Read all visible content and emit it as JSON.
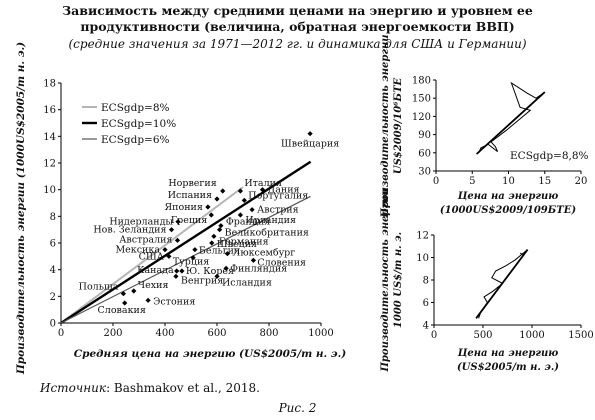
{
  "header": {
    "title_line1": "Зависимость между средними ценами на энергию и уровнем ее",
    "title_line2": "продуктивности (величина, обратная энергоемкости ВВП)",
    "subtitle": "(средние значения за 1971—2012 гг. и динамика для США и Германии)"
  },
  "chart_data": [
    {
      "type": "scatter",
      "xlabel": "Средняя цена на энергию (US$2005/т н. э.)",
      "ylabel": "Производительность энергии (1000US$2005/т н. э.)",
      "xlim": [
        0,
        1000
      ],
      "ylim": [
        0,
        18
      ],
      "x_ticks": [
        "0",
        "200",
        "400",
        "600",
        "800",
        "1000"
      ],
      "y_ticks": [
        "0",
        "2",
        "4",
        "6",
        "8",
        "10",
        "12",
        "14",
        "16",
        "18"
      ],
      "legend": {
        "placement": "top-left",
        "entries": [
          "ECSgdp=8%",
          "ECSgdp=10%",
          "ECSgdp=6%"
        ]
      },
      "lines": [
        {
          "name": "ECSgdp=8%",
          "color": "#b5b5b5",
          "width": 2,
          "points": [
            [
              0,
              0
            ],
            [
              700,
              10.2
            ]
          ]
        },
        {
          "name": "ECSgdp=10%",
          "color": "#000000",
          "width": 2.4,
          "points": [
            [
              0,
              0
            ],
            [
              960,
              12.1
            ]
          ]
        },
        {
          "name": "ECSgdp=6%",
          "color": "#555555",
          "width": 1.2,
          "points": [
            [
              0,
              0
            ],
            [
              960,
              9.5
            ]
          ]
        }
      ],
      "points": [
        {
          "label": "Швейцария",
          "x": 958,
          "y": 14.2
        },
        {
          "label": "Норвегия",
          "x": 622,
          "y": 9.9
        },
        {
          "label": "Италия",
          "x": 690,
          "y": 9.9
        },
        {
          "label": "Дания",
          "x": 775,
          "y": 10.0
        },
        {
          "label": "Испания",
          "x": 600,
          "y": 9.3
        },
        {
          "label": "Португалия",
          "x": 705,
          "y": 9.2
        },
        {
          "label": "Япония",
          "x": 565,
          "y": 8.7
        },
        {
          "label": "Австрия",
          "x": 735,
          "y": 8.5
        },
        {
          "label": "Греция",
          "x": 578,
          "y": 8.1
        },
        {
          "label": "Ирландия",
          "x": 690,
          "y": 8.1
        },
        {
          "label": "Нидерланды",
          "x": 450,
          "y": 7.6
        },
        {
          "label": "Франция",
          "x": 615,
          "y": 7.3
        },
        {
          "label": "Нов. Зеландия",
          "x": 425,
          "y": 7.0
        },
        {
          "label": "Великобритания",
          "x": 610,
          "y": 7.0
        },
        {
          "label": "Австралия",
          "x": 448,
          "y": 6.2
        },
        {
          "label": "Германия",
          "x": 588,
          "y": 6.5
        },
        {
          "label": "Швеция",
          "x": 580,
          "y": 6.0
        },
        {
          "label": "Мексика",
          "x": 400,
          "y": 5.5
        },
        {
          "label": "Бельгия",
          "x": 515,
          "y": 5.5
        },
        {
          "label": "США",
          "x": 415,
          "y": 5.0
        },
        {
          "label": "Турция",
          "x": 508,
          "y": 4.9
        },
        {
          "label": "Люксембург",
          "x": 640,
          "y": 5.2
        },
        {
          "label": "Словения",
          "x": 740,
          "y": 4.7
        },
        {
          "label": "Канада",
          "x": 445,
          "y": 3.9
        },
        {
          "label": "Ю. Корея",
          "x": 465,
          "y": 3.9
        },
        {
          "label": "Финляндия",
          "x": 635,
          "y": 4.1
        },
        {
          "label": "Венгрия",
          "x": 442,
          "y": 3.5
        },
        {
          "label": "Исландия",
          "x": 600,
          "y": 3.5
        },
        {
          "label": "Польша",
          "x": 240,
          "y": 2.2
        },
        {
          "label": "Чехия",
          "x": 280,
          "y": 2.4
        },
        {
          "label": "Эстония",
          "x": 335,
          "y": 1.7
        },
        {
          "label": "Словакия",
          "x": 245,
          "y": 1.5
        }
      ]
    },
    {
      "type": "line",
      "xlabel_line1": "Цена на энергию",
      "xlabel_line2": "(1000US$2009/109БТЕ)",
      "ylabel_line1": "Производительность энергии",
      "ylabel_line2": "US$2009/10⁶БТЕ",
      "xlim": [
        0,
        20
      ],
      "ylim": [
        30,
        180
      ],
      "x_ticks": [
        "0",
        "5",
        "10",
        "15",
        "20"
      ],
      "y_ticks": [
        "30",
        "60",
        "90",
        "120",
        "150",
        "180"
      ],
      "annotation": "ECSgdp=8,8%",
      "trajectory": [
        [
          5.9,
          60
        ],
        [
          6.2,
          68
        ],
        [
          7.2,
          74
        ],
        [
          8.5,
          62
        ],
        [
          8.2,
          70
        ],
        [
          7.6,
          78
        ],
        [
          9.8,
          98
        ],
        [
          11.8,
          118
        ],
        [
          13.0,
          130
        ],
        [
          11.6,
          135
        ],
        [
          10.4,
          175
        ],
        [
          12.6,
          158
        ],
        [
          13.8,
          150
        ],
        [
          14.8,
          158
        ],
        [
          14.2,
          153
        ]
      ],
      "fit": [
        [
          5.6,
          58
        ],
        [
          15.0,
          160
        ]
      ]
    },
    {
      "type": "line",
      "xlabel_line1": "Цена на энергию",
      "xlabel_line2": "(US$2005/т н. э.)",
      "ylabel": "1000 US$/т н. э.",
      "xlim": [
        0,
        1500
      ],
      "ylim": [
        4,
        12
      ],
      "x_ticks": [
        "0",
        "500",
        "1000",
        "1500"
      ],
      "y_ticks": [
        "4",
        "6",
        "8",
        "10",
        "12"
      ],
      "trajectory": [
        [
          455,
          4.6
        ],
        [
          480,
          5.2
        ],
        [
          545,
          6.0
        ],
        [
          510,
          6.5
        ],
        [
          600,
          7.0
        ],
        [
          700,
          7.7
        ],
        [
          590,
          8.2
        ],
        [
          630,
          8.8
        ],
        [
          740,
          9.3
        ],
        [
          830,
          9.8
        ],
        [
          940,
          10.6
        ],
        [
          910,
          10.2
        ],
        [
          880,
          10.4
        ]
      ],
      "fit": [
        [
          430,
          4.6
        ],
        [
          955,
          10.7
        ]
      ]
    }
  ],
  "footer": {
    "source_label": "Источник",
    "source_text": ": Bashmakov et al., 2018.",
    "figure_caption": "Рис. 2"
  }
}
